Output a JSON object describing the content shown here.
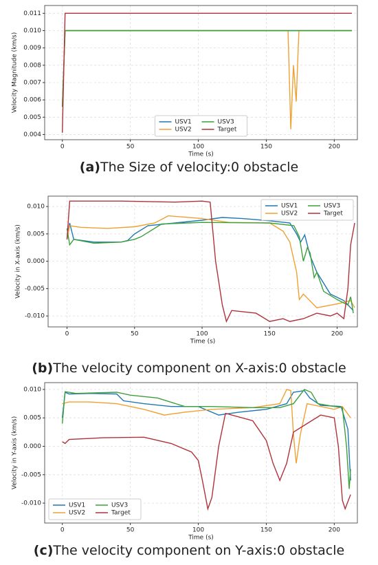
{
  "chart_data": [
    {
      "type": "line",
      "caption_label": "(a)",
      "caption": "The Size of velocity:0 obstacle",
      "xlabel": "Time (s)",
      "ylabel": "Velocity Magnitude (km/s)",
      "xlim": [
        -13,
        217
      ],
      "xticks": [
        0,
        50,
        100,
        150,
        200
      ],
      "ylim": [
        0.0037,
        0.01145
      ],
      "yticks": [
        {
          "value": 0.004,
          "label": "0.004"
        },
        {
          "value": 0.005,
          "label": "0.005"
        },
        {
          "value": 0.006,
          "label": "0.006"
        },
        {
          "value": 0.007,
          "label": "0.007"
        },
        {
          "value": 0.008,
          "label": "0.008"
        },
        {
          "value": 0.009,
          "label": "0.009"
        },
        {
          "value": 0.01,
          "label": "0.010"
        },
        {
          "value": 0.011,
          "label": "0.011"
        }
      ],
      "grid": true,
      "legend": "lower center",
      "series": [
        {
          "name": "USV1",
          "color": "#1f77b4",
          "x": [
            0,
            2,
            213
          ],
          "values": [
            0.0056,
            0.01,
            0.01
          ]
        },
        {
          "name": "USV2",
          "color": "#f0a030",
          "x": [
            0,
            2,
            166,
            168,
            170,
            172,
            174,
            213
          ],
          "values": [
            0.0056,
            0.01,
            0.01,
            0.0043,
            0.008,
            0.0059,
            0.01,
            0.01
          ]
        },
        {
          "name": "USV3",
          "color": "#3aa03a",
          "x": [
            0,
            2,
            213
          ],
          "values": [
            0.0056,
            0.01,
            0.01
          ]
        },
        {
          "name": "Target",
          "color": "#b0303a",
          "x": [
            0,
            2,
            213
          ],
          "values": [
            0.0041,
            0.011,
            0.011
          ]
        }
      ]
    },
    {
      "type": "line",
      "caption_label": "(b)",
      "caption": "The velocity component  on X-axis:0 obstacle",
      "xlabel": "Time (s)",
      "ylabel": "Velocity in X-axis (km/s)",
      "xlim": [
        -14,
        215
      ],
      "xticks": [
        0,
        50,
        100,
        150,
        200
      ],
      "ylim": [
        -0.012,
        0.0119
      ],
      "yticks": [
        {
          "value": -0.01,
          "label": "-0.010"
        },
        {
          "value": -0.005,
          "label": "-0.005"
        },
        {
          "value": 0,
          "label": "0.000"
        },
        {
          "value": 0.005,
          "label": "0.005"
        },
        {
          "value": 0.01,
          "label": "0.010"
        }
      ],
      "grid": true,
      "legend": "upper right",
      "series": [
        {
          "name": "USV1",
          "color": "#1f77b4",
          "x": [
            0,
            2,
            5,
            20,
            40,
            45,
            50,
            60,
            80,
            100,
            115,
            130,
            150,
            165,
            170,
            173,
            176,
            180,
            185,
            195,
            205,
            210,
            212
          ],
          "values": [
            0.004,
            0.007,
            0.004,
            0.0035,
            0.0035,
            0.0038,
            0.005,
            0.0065,
            0.007,
            0.0075,
            0.008,
            0.0078,
            0.0074,
            0.007,
            0.005,
            0.0035,
            0.0048,
            0.001,
            -0.002,
            -0.006,
            -0.0072,
            -0.0085,
            -0.009
          ]
        },
        {
          "name": "USV2",
          "color": "#f0a030",
          "x": [
            0,
            2,
            10,
            30,
            50,
            65,
            75,
            100,
            120,
            150,
            160,
            165,
            170,
            172,
            175,
            185,
            200,
            210,
            213
          ],
          "values": [
            0.004,
            0.0065,
            0.0062,
            0.006,
            0.0063,
            0.007,
            0.0083,
            0.0078,
            0.0071,
            0.007,
            0.0055,
            0.0035,
            -0.002,
            -0.007,
            -0.006,
            -0.0085,
            -0.0078,
            -0.0072,
            -0.0085
          ]
        },
        {
          "name": "USV3",
          "color": "#3aa03a",
          "x": [
            0,
            2,
            5,
            20,
            40,
            50,
            55,
            70,
            100,
            150,
            168,
            172,
            175,
            178,
            180,
            183,
            185,
            190,
            200,
            208,
            210,
            212
          ],
          "values": [
            0.006,
            0.003,
            0.004,
            0.0033,
            0.0035,
            0.004,
            0.0045,
            0.0068,
            0.0071,
            0.007,
            0.0065,
            0.0045,
            0.0,
            0.0025,
            0.0015,
            -0.003,
            -0.002,
            -0.0055,
            -0.007,
            -0.008,
            -0.0065,
            -0.0095
          ]
        },
        {
          "name": "Target",
          "color": "#b0303a",
          "x": [
            0,
            2,
            40,
            80,
            100,
            106,
            110,
            115,
            118,
            122,
            140,
            150,
            160,
            165,
            175,
            185,
            195,
            200,
            205,
            208,
            210,
            213
          ],
          "values": [
            0.004,
            0.011,
            0.011,
            0.0108,
            0.011,
            0.0108,
            0.0,
            -0.008,
            -0.011,
            -0.009,
            -0.0095,
            -0.011,
            -0.0105,
            -0.011,
            -0.0105,
            -0.0095,
            -0.01,
            -0.0095,
            -0.0105,
            -0.005,
            0.003,
            0.007
          ]
        }
      ]
    },
    {
      "type": "line",
      "caption_label": "(c)",
      "caption": "The velocity component  on Y-axis:0 obstacle",
      "xlabel": "Time (s)",
      "ylabel": "Velocity in Y-axis (km/s)",
      "xlim": [
        -13,
        217
      ],
      "xticks": [
        0,
        50,
        100,
        150,
        200
      ],
      "ylim": [
        -0.0135,
        0.0112
      ],
      "yticks": [
        {
          "value": -0.01,
          "label": "-0.010"
        },
        {
          "value": -0.005,
          "label": "-0.005"
        },
        {
          "value": 0,
          "label": "0.000"
        },
        {
          "value": 0.005,
          "label": "0.005"
        },
        {
          "value": 0.01,
          "label": "0.010"
        }
      ],
      "grid": true,
      "legend": "lower left",
      "series": [
        {
          "name": "USV1",
          "color": "#1f77b4",
          "x": [
            0,
            2,
            5,
            20,
            40,
            45,
            60,
            80,
            100,
            115,
            130,
            150,
            165,
            170,
            178,
            182,
            190,
            205,
            210,
            212
          ],
          "values": [
            0.005,
            0.0095,
            0.0092,
            0.0093,
            0.0092,
            0.008,
            0.0075,
            0.007,
            0.007,
            0.0055,
            0.006,
            0.0065,
            0.0075,
            0.0095,
            0.0098,
            0.0085,
            0.0072,
            0.007,
            0.003,
            -0.006
          ]
        },
        {
          "name": "USV2",
          "color": "#f0a030",
          "x": [
            0,
            5,
            20,
            40,
            60,
            75,
            90,
            110,
            140,
            160,
            165,
            168,
            170,
            172,
            175,
            180,
            200,
            206,
            212
          ],
          "values": [
            0.0075,
            0.0078,
            0.0078,
            0.0075,
            0.0065,
            0.0055,
            0.006,
            0.0065,
            0.0068,
            0.0075,
            0.01,
            0.0098,
            0.002,
            -0.003,
            0.002,
            0.0075,
            0.0065,
            0.007,
            0.005
          ]
        },
        {
          "name": "USV3",
          "color": "#3aa03a",
          "x": [
            0,
            2,
            10,
            40,
            50,
            70,
            90,
            110,
            140,
            160,
            170,
            178,
            183,
            188,
            200,
            206,
            209,
            211,
            212
          ],
          "values": [
            0.004,
            0.0096,
            0.0093,
            0.0095,
            0.009,
            0.0085,
            0.007,
            0.007,
            0.0068,
            0.0068,
            0.0075,
            0.01,
            0.0095,
            0.0075,
            0.007,
            0.0068,
            0.0,
            -0.0075,
            -0.004
          ]
        },
        {
          "name": "Target",
          "color": "#b0303a",
          "x": [
            0,
            2,
            5,
            30,
            60,
            80,
            95,
            100,
            103,
            107,
            110,
            115,
            120,
            140,
            150,
            155,
            160,
            165,
            170,
            180,
            190,
            200,
            203,
            206,
            208,
            212
          ],
          "values": [
            0.0008,
            0.0005,
            0.0012,
            0.0015,
            0.0016,
            0.0005,
            -0.001,
            -0.0025,
            -0.006,
            -0.011,
            -0.009,
            0.0,
            0.0058,
            0.0045,
            0.001,
            -0.003,
            -0.006,
            -0.003,
            0.0025,
            0.004,
            0.0055,
            0.005,
            0.0,
            -0.0095,
            -0.011,
            -0.0085
          ]
        }
      ]
    }
  ]
}
